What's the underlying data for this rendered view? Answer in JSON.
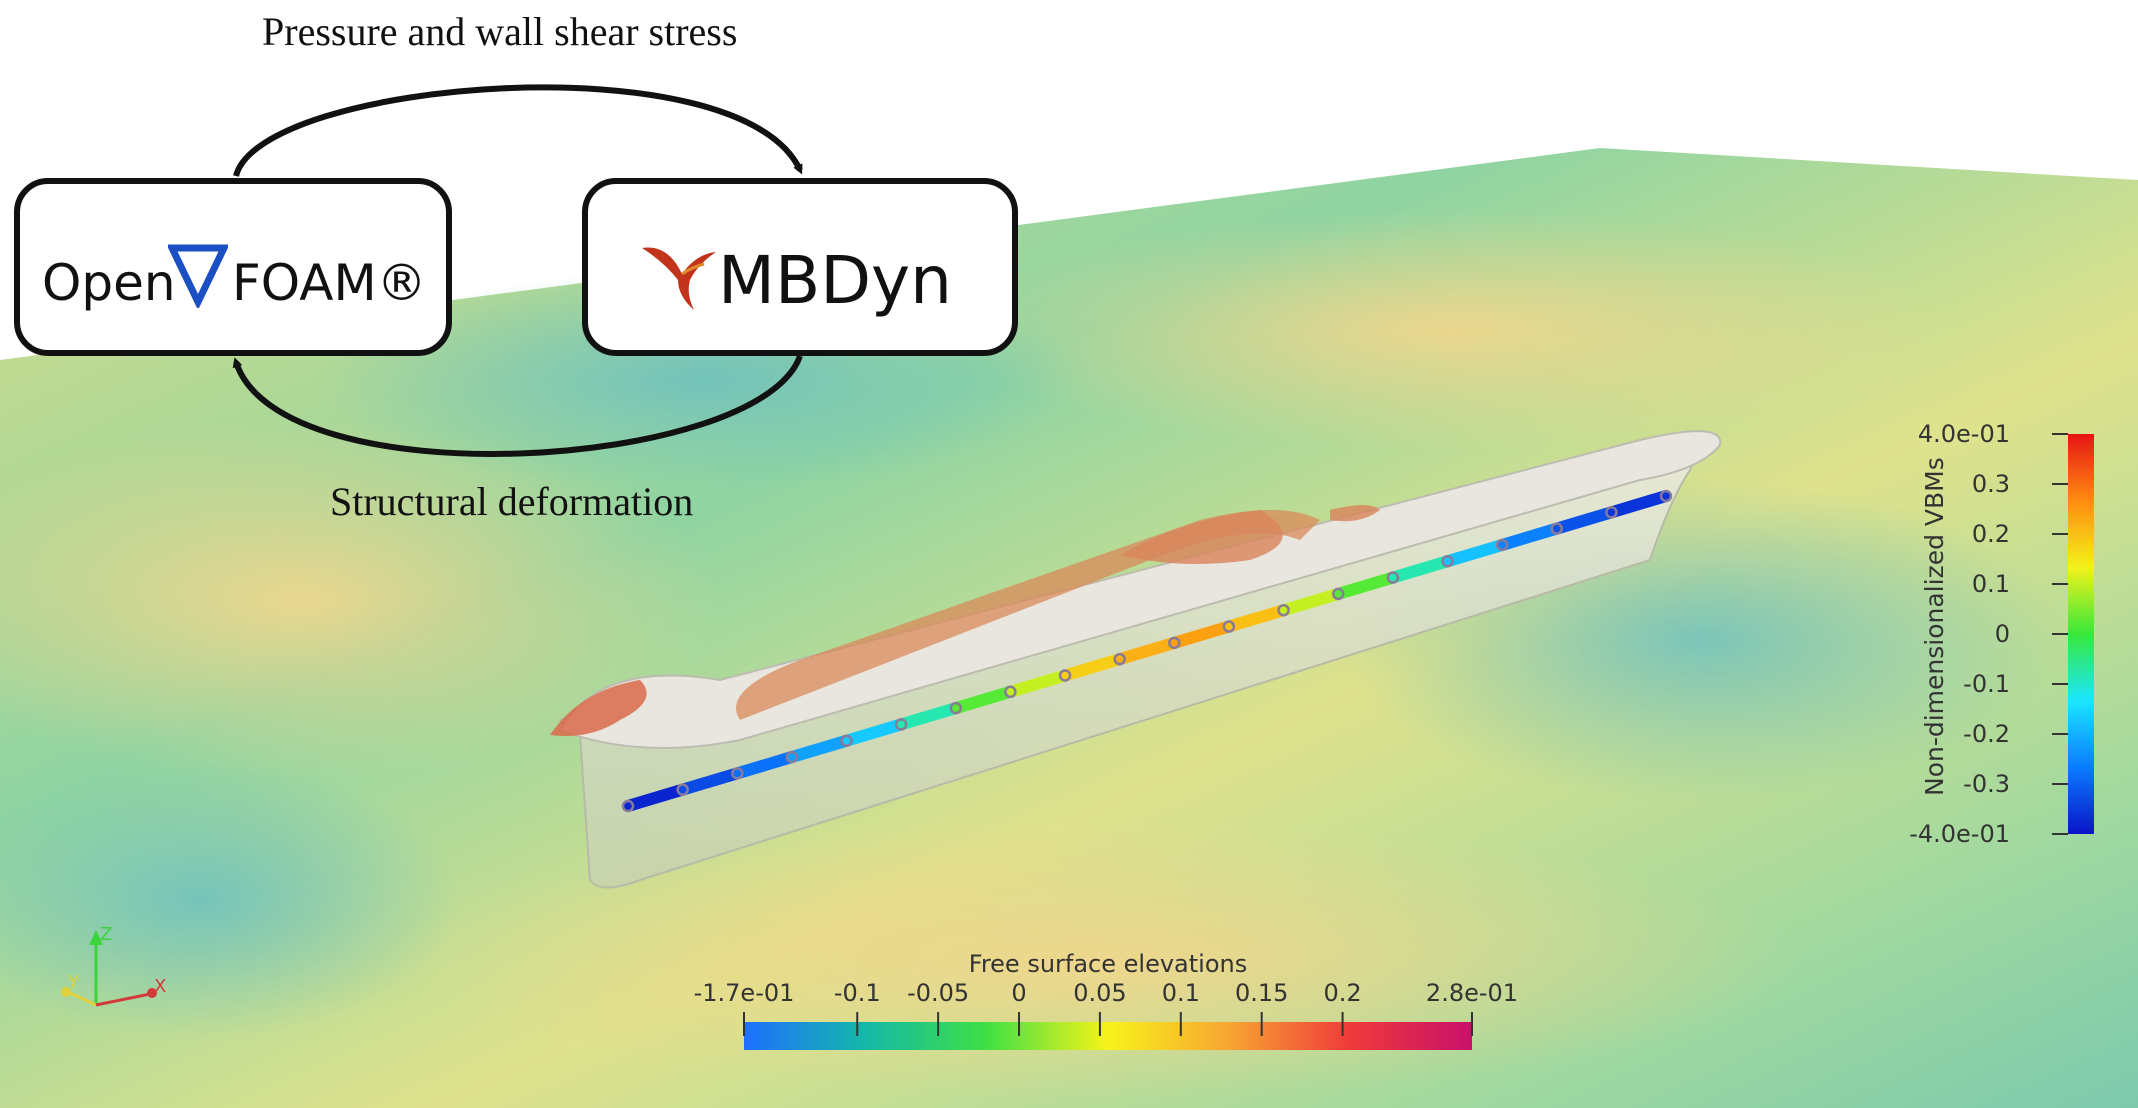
{
  "coupling": {
    "top_label": "Pressure and wall shear stress",
    "bottom_label": "Structural deformation",
    "left_box": {
      "text_before": "Open",
      "text_after": "FOAM®",
      "logo_icon": "nabla-icon",
      "accent": "#1b4fc4"
    },
    "right_box": {
      "text": "MBDyn",
      "logo_icon": "hummingbird-icon",
      "accent": "#c2331c"
    }
  },
  "free_surface_colorbar": {
    "title": "Free surface elevations",
    "range": [
      -0.17,
      0.28
    ],
    "ticks": [
      {
        "label": "-1.7e-01",
        "value": -0.17
      },
      {
        "label": "-0.1",
        "value": -0.1
      },
      {
        "label": "-0.05",
        "value": -0.05
      },
      {
        "label": "0",
        "value": 0
      },
      {
        "label": "0.05",
        "value": 0.05
      },
      {
        "label": "0.1",
        "value": 0.1
      },
      {
        "label": "0.15",
        "value": 0.15
      },
      {
        "label": "0.2",
        "value": 0.2
      },
      {
        "label": "2.8e-01",
        "value": 0.28
      }
    ],
    "colors": [
      "#1e6fff",
      "#14b8a8",
      "#3fe044",
      "#f7f31a",
      "#f7a532",
      "#ef3a3a",
      "#c8106a"
    ]
  },
  "vbm_colorbar": {
    "title": "Non-dimensionalized VBMs",
    "range": [
      -0.4,
      0.4
    ],
    "ticks": [
      {
        "label": "4.0e-01",
        "value": 0.4
      },
      {
        "label": "0.3",
        "value": 0.3
      },
      {
        "label": "0.2",
        "value": 0.2
      },
      {
        "label": "0.1",
        "value": 0.1
      },
      {
        "label": "0",
        "value": 0
      },
      {
        "label": "-0.1",
        "value": -0.1
      },
      {
        "label": "-0.2",
        "value": -0.2
      },
      {
        "label": "-0.3",
        "value": -0.3
      },
      {
        "label": "-4.0e-01",
        "value": -0.4
      }
    ],
    "colors": [
      "#0a14c8",
      "#0a7cff",
      "#1ce6ff",
      "#38e83a",
      "#f2f21a",
      "#ff8c10",
      "#e61414"
    ]
  },
  "beam": {
    "segment_values": [
      -0.38,
      -0.33,
      -0.28,
      -0.22,
      -0.17,
      -0.08,
      0.02,
      0.1,
      0.18,
      0.22,
      0.24,
      0.2,
      0.1,
      0.02,
      -0.08,
      -0.18,
      -0.26,
      -0.32,
      -0.36
    ]
  },
  "axes_triad": {
    "z": "Z",
    "y": "Y",
    "x": "X"
  }
}
